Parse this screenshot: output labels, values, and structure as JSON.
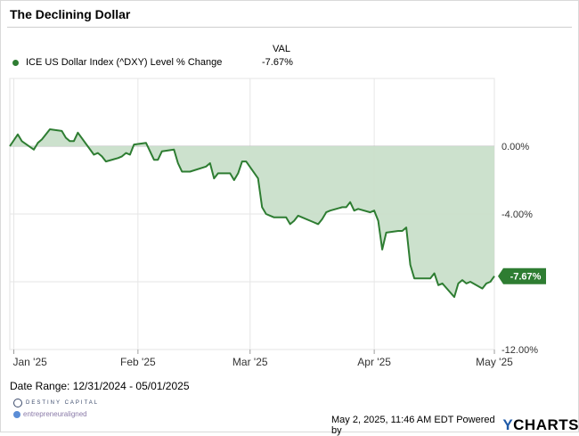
{
  "title": "The Declining Dollar",
  "legend": {
    "col_header": "VAL",
    "series_name": "ICE US Dollar Index (^DXY) Level % Change",
    "series_value": "-7.67%"
  },
  "chart_data": {
    "type": "area",
    "title": "The Declining Dollar",
    "xlabel": "",
    "ylabel": "",
    "x_range": [
      "2024-12-31",
      "2025-05-01"
    ],
    "ylim": [
      -12,
      4
    ],
    "x_ticks": [
      {
        "date": "2025-01-01",
        "label": "Jan '25"
      },
      {
        "date": "2025-02-01",
        "label": "Feb '25"
      },
      {
        "date": "2025-03-01",
        "label": "Mar '25"
      },
      {
        "date": "2025-04-01",
        "label": "Apr '25"
      },
      {
        "date": "2025-05-01",
        "label": "May '25"
      }
    ],
    "y_ticks": [
      {
        "value": 0,
        "label": "0.00%"
      },
      {
        "value": -4,
        "label": "-4.00%"
      },
      {
        "value": -12,
        "label": "-12.00%"
      }
    ],
    "grid": true,
    "legend_position": "top-left",
    "series": [
      {
        "name": "ICE US Dollar Index (^DXY) Level % Change",
        "color": "#2e7d32",
        "fill": "#c9dfca",
        "last_label": "-7.67%",
        "points": [
          [
            "2024-12-31",
            0.0
          ],
          [
            "2025-01-02",
            0.7
          ],
          [
            "2025-01-03",
            0.3
          ],
          [
            "2025-01-06",
            -0.2
          ],
          [
            "2025-01-07",
            0.2
          ],
          [
            "2025-01-08",
            0.4
          ],
          [
            "2025-01-10",
            1.0
          ],
          [
            "2025-01-13",
            0.9
          ],
          [
            "2025-01-14",
            0.5
          ],
          [
            "2025-01-15",
            0.3
          ],
          [
            "2025-01-16",
            0.3
          ],
          [
            "2025-01-17",
            0.8
          ],
          [
            "2025-01-21",
            -0.5
          ],
          [
            "2025-01-22",
            -0.4
          ],
          [
            "2025-01-23",
            -0.6
          ],
          [
            "2025-01-24",
            -0.9
          ],
          [
            "2025-01-27",
            -0.7
          ],
          [
            "2025-01-28",
            -0.6
          ],
          [
            "2025-01-29",
            -0.4
          ],
          [
            "2025-01-30",
            -0.5
          ],
          [
            "2025-01-31",
            0.1
          ],
          [
            "2025-02-03",
            0.2
          ],
          [
            "2025-02-04",
            -0.3
          ],
          [
            "2025-02-05",
            -0.8
          ],
          [
            "2025-02-06",
            -0.8
          ],
          [
            "2025-02-07",
            -0.3
          ],
          [
            "2025-02-10",
            -0.2
          ],
          [
            "2025-02-11",
            -1.0
          ],
          [
            "2025-02-12",
            -1.5
          ],
          [
            "2025-02-13",
            -1.5
          ],
          [
            "2025-02-14",
            -1.5
          ],
          [
            "2025-02-18",
            -1.2
          ],
          [
            "2025-02-19",
            -1.0
          ],
          [
            "2025-02-20",
            -1.9
          ],
          [
            "2025-02-21",
            -1.6
          ],
          [
            "2025-02-24",
            -1.6
          ],
          [
            "2025-02-25",
            -2.0
          ],
          [
            "2025-02-26",
            -1.6
          ],
          [
            "2025-02-27",
            -0.9
          ],
          [
            "2025-02-28",
            -0.9
          ],
          [
            "2025-03-03",
            -1.9
          ],
          [
            "2025-03-04",
            -3.6
          ],
          [
            "2025-03-05",
            -4.0
          ],
          [
            "2025-03-06",
            -4.1
          ],
          [
            "2025-03-07",
            -4.2
          ],
          [
            "2025-03-10",
            -4.2
          ],
          [
            "2025-03-11",
            -4.6
          ],
          [
            "2025-03-12",
            -4.4
          ],
          [
            "2025-03-13",
            -4.1
          ],
          [
            "2025-03-14",
            -4.2
          ],
          [
            "2025-03-17",
            -4.5
          ],
          [
            "2025-03-18",
            -4.6
          ],
          [
            "2025-03-19",
            -4.3
          ],
          [
            "2025-03-20",
            -3.9
          ],
          [
            "2025-03-21",
            -3.8
          ],
          [
            "2025-03-24",
            -3.6
          ],
          [
            "2025-03-25",
            -3.6
          ],
          [
            "2025-03-26",
            -3.3
          ],
          [
            "2025-03-27",
            -3.8
          ],
          [
            "2025-03-28",
            -3.7
          ],
          [
            "2025-03-31",
            -3.9
          ],
          [
            "2025-04-01",
            -3.8
          ],
          [
            "2025-04-02",
            -4.4
          ],
          [
            "2025-04-03",
            -6.1
          ],
          [
            "2025-04-04",
            -5.1
          ],
          [
            "2025-04-07",
            -5.0
          ],
          [
            "2025-04-08",
            -5.0
          ],
          [
            "2025-04-09",
            -4.8
          ],
          [
            "2025-04-10",
            -7.0
          ],
          [
            "2025-04-11",
            -7.8
          ],
          [
            "2025-04-14",
            -7.8
          ],
          [
            "2025-04-15",
            -7.8
          ],
          [
            "2025-04-16",
            -7.5
          ],
          [
            "2025-04-17",
            -8.2
          ],
          [
            "2025-04-18",
            -8.1
          ],
          [
            "2025-04-21",
            -8.9
          ],
          [
            "2025-04-22",
            -8.1
          ],
          [
            "2025-04-23",
            -7.9
          ],
          [
            "2025-04-24",
            -8.1
          ],
          [
            "2025-04-25",
            -8.0
          ],
          [
            "2025-04-28",
            -8.4
          ],
          [
            "2025-04-29",
            -8.1
          ],
          [
            "2025-04-30",
            -8.0
          ],
          [
            "2025-05-01",
            -7.67
          ]
        ]
      }
    ]
  },
  "footer": {
    "date_range": "Date Range: 12/31/2024 - 05/01/2025",
    "timestamp": "May 2, 2025, 11:46 AM EDT Powered by",
    "brand_y": "Y",
    "brand_rest": "CHARTS",
    "logo_destiny": "DESTINY CAPITAL",
    "logo_entrepreneur": "entrepreneuraligned"
  }
}
